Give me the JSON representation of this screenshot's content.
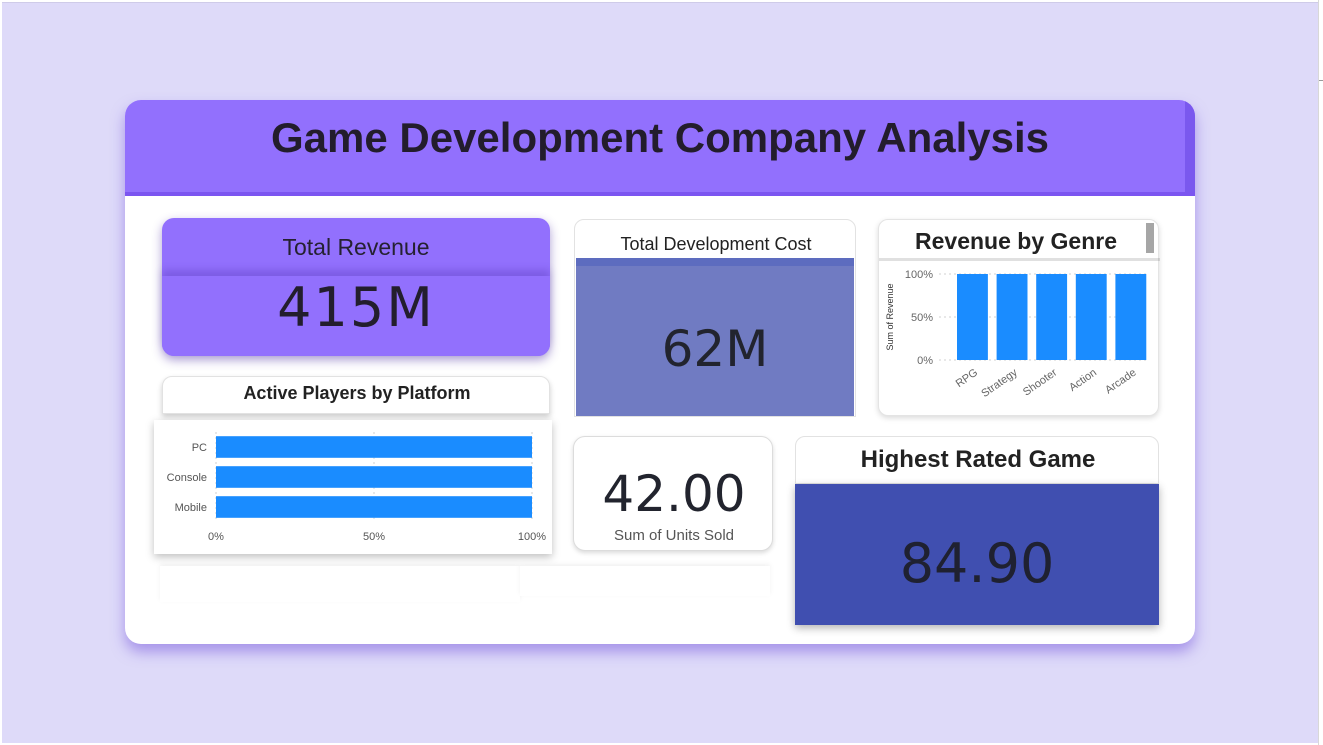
{
  "dashboard": {
    "title": "Game Development Company Analysis"
  },
  "kpis": {
    "total_revenue": {
      "label": "Total Revenue",
      "value": "415M"
    },
    "total_dev_cost": {
      "label": "Total Development Cost",
      "value": "62M"
    },
    "units_sold": {
      "label": "Sum of Units Sold",
      "value": "42.00"
    },
    "highest_rated": {
      "label": "Highest Rated Game",
      "value": "84.90"
    }
  },
  "colors": {
    "background": "#dedaf9",
    "header": "#9270fd",
    "revenue_card": "#9270fd",
    "cost_card": "#707bc2",
    "rated_card": "#404fb0",
    "bar": "#1a8cff"
  },
  "chart_data": [
    {
      "type": "bar",
      "title": "Revenue by Genre",
      "ylabel": "Sum of Revenue",
      "xlabel": "",
      "categories": [
        "RPG",
        "Strategy",
        "Shooter",
        "Action",
        "Arcade"
      ],
      "values": [
        100,
        100,
        100,
        100,
        100
      ],
      "ylim": [
        0,
        100
      ],
      "y_ticks": [
        "0%",
        "50%",
        "100%"
      ],
      "grid": true,
      "orientation": "vertical"
    },
    {
      "type": "bar",
      "title": "Active Players by Platform",
      "xlabel": "",
      "ylabel": "",
      "categories": [
        "PC",
        "Console",
        "Mobile"
      ],
      "values": [
        100,
        100,
        100
      ],
      "xlim": [
        0,
        100
      ],
      "x_ticks": [
        "0%",
        "50%",
        "100%"
      ],
      "grid": true,
      "orientation": "horizontal"
    }
  ]
}
